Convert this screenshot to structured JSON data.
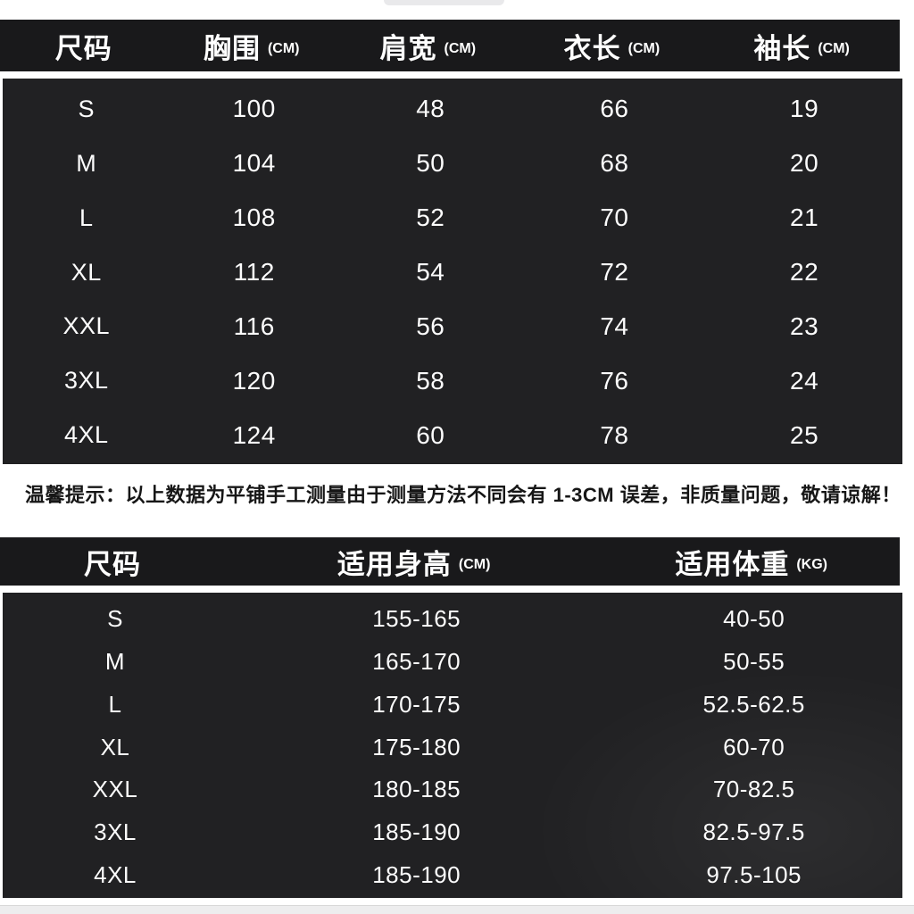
{
  "notice": "温馨提示：以上数据为平铺手工测量由于测量方法不同会有 1-3CM 误差，非质量问题，敬请谅解！",
  "colors": {
    "header_bar": "#19191b",
    "panel": "#212123",
    "text_light": "#ffffff",
    "text_dark": "#161616",
    "background": "#ffffff"
  },
  "table1": {
    "headers": [
      {
        "label": "尺码",
        "unit": ""
      },
      {
        "label": "胸围",
        "unit": "(CM)"
      },
      {
        "label": "肩宽",
        "unit": "(CM)"
      },
      {
        "label": "衣长",
        "unit": "(CM)"
      },
      {
        "label": "袖长",
        "unit": "(CM)"
      }
    ],
    "rows": [
      [
        "S",
        "100",
        "48",
        "66",
        "19"
      ],
      [
        "M",
        "104",
        "50",
        "68",
        "20"
      ],
      [
        "L",
        "108",
        "52",
        "70",
        "21"
      ],
      [
        "XL",
        "112",
        "54",
        "72",
        "22"
      ],
      [
        "XXL",
        "116",
        "56",
        "74",
        "23"
      ],
      [
        "3XL",
        "120",
        "58",
        "76",
        "24"
      ],
      [
        "4XL",
        "124",
        "60",
        "78",
        "25"
      ]
    ]
  },
  "table2": {
    "headers": [
      {
        "label": "尺码",
        "unit": ""
      },
      {
        "label": "适用身高",
        "unit": "(CM)"
      },
      {
        "label": "适用体重",
        "unit": "(KG)"
      }
    ],
    "rows": [
      [
        "S",
        "155-165",
        "40-50"
      ],
      [
        "M",
        "165-170",
        "50-55"
      ],
      [
        "L",
        "170-175",
        "52.5-62.5"
      ],
      [
        "XL",
        "175-180",
        "60-70"
      ],
      [
        "XXL",
        "180-185",
        "70-82.5"
      ],
      [
        "3XL",
        "185-190",
        "82.5-97.5"
      ],
      [
        "4XL",
        "185-190",
        "97.5-105"
      ]
    ]
  }
}
